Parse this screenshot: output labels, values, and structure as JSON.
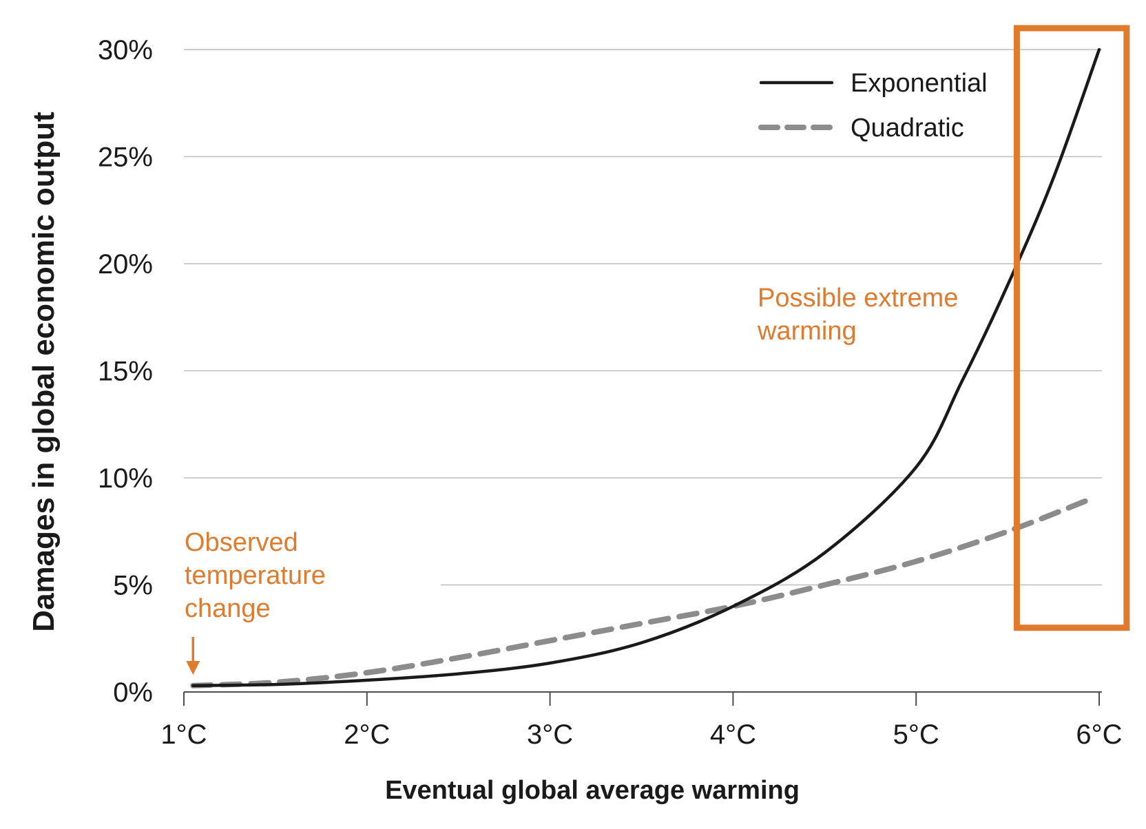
{
  "chart_data": {
    "type": "line",
    "title": "",
    "xlabel": "Eventual global average warming",
    "ylabel": "Damages in global economic output",
    "x_ticks": [
      {
        "value": 1,
        "label": "1°C"
      },
      {
        "value": 2,
        "label": "2°C"
      },
      {
        "value": 3,
        "label": "3°C"
      },
      {
        "value": 4,
        "label": "4°C"
      },
      {
        "value": 5,
        "label": "5°C"
      },
      {
        "value": 6,
        "label": "6°C"
      }
    ],
    "y_ticks": [
      {
        "value": 0,
        "label": "0%"
      },
      {
        "value": 5,
        "label": "5%"
      },
      {
        "value": 10,
        "label": "10%"
      },
      {
        "value": 15,
        "label": "15%"
      },
      {
        "value": 20,
        "label": "20%"
      },
      {
        "value": 25,
        "label": "25%"
      },
      {
        "value": 30,
        "label": "30%"
      }
    ],
    "xlim": [
      1,
      6
    ],
    "ylim": [
      0,
      30
    ],
    "grid": "horizontal",
    "legend_position": "top-right",
    "series": [
      {
        "name": "Exponential",
        "style": "solid",
        "color": "#1a1a1a",
        "x": [
          1.05,
          1.5,
          2.0,
          2.5,
          3.0,
          3.5,
          4.0,
          4.5,
          5.0,
          5.25,
          5.5,
          5.75,
          6.0
        ],
        "y": [
          0.3,
          0.35,
          0.55,
          0.85,
          1.35,
          2.3,
          4.0,
          6.5,
          10.5,
          14.5,
          19.0,
          24.0,
          30.0
        ]
      },
      {
        "name": "Quadratic",
        "style": "dashed",
        "color": "#8c8c8c",
        "x": [
          1.05,
          1.5,
          2.0,
          2.5,
          3.0,
          3.5,
          4.0,
          4.5,
          5.0,
          5.5,
          5.95
        ],
        "y": [
          0.3,
          0.45,
          0.9,
          1.6,
          2.4,
          3.2,
          4.0,
          5.0,
          6.1,
          7.5,
          9.0
        ]
      }
    ],
    "annotations": [
      {
        "id": "observed",
        "lines": [
          "Observed",
          "temperature",
          "change"
        ],
        "x": 1.05,
        "color": "#e07b2e"
      },
      {
        "id": "extreme",
        "lines": [
          "Possible extreme",
          "warming"
        ],
        "color": "#e07b2e"
      }
    ],
    "highlight_region": {
      "x_range": [
        5.55,
        6.15
      ],
      "y_range": [
        3,
        31
      ],
      "color": "#e07b2e"
    }
  }
}
